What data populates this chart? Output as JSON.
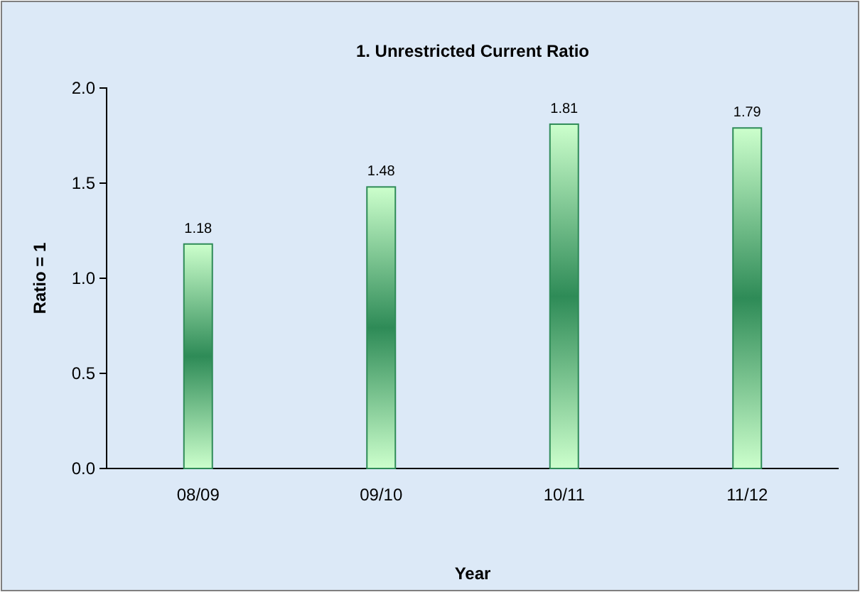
{
  "chart_data": {
    "type": "bar",
    "title": "1. Unrestricted Current Ratio",
    "xlabel": "Year",
    "ylabel": "Ratio = 1",
    "categories": [
      "08/09",
      "09/10",
      "10/11",
      "11/12"
    ],
    "values": [
      1.18,
      1.48,
      1.81,
      1.79
    ],
    "color": "#2e8b57",
    "ylim": [
      0,
      2
    ],
    "yticks": [
      {
        "value": 0,
        "label": "0.0"
      },
      {
        "value": 0.5,
        "label": "0.5"
      },
      {
        "value": 1,
        "label": "1.0"
      },
      {
        "value": 1.5,
        "label": "1.5"
      },
      {
        "value": 2,
        "label": "2.0"
      }
    ],
    "data_labels": true,
    "grid": false
  }
}
